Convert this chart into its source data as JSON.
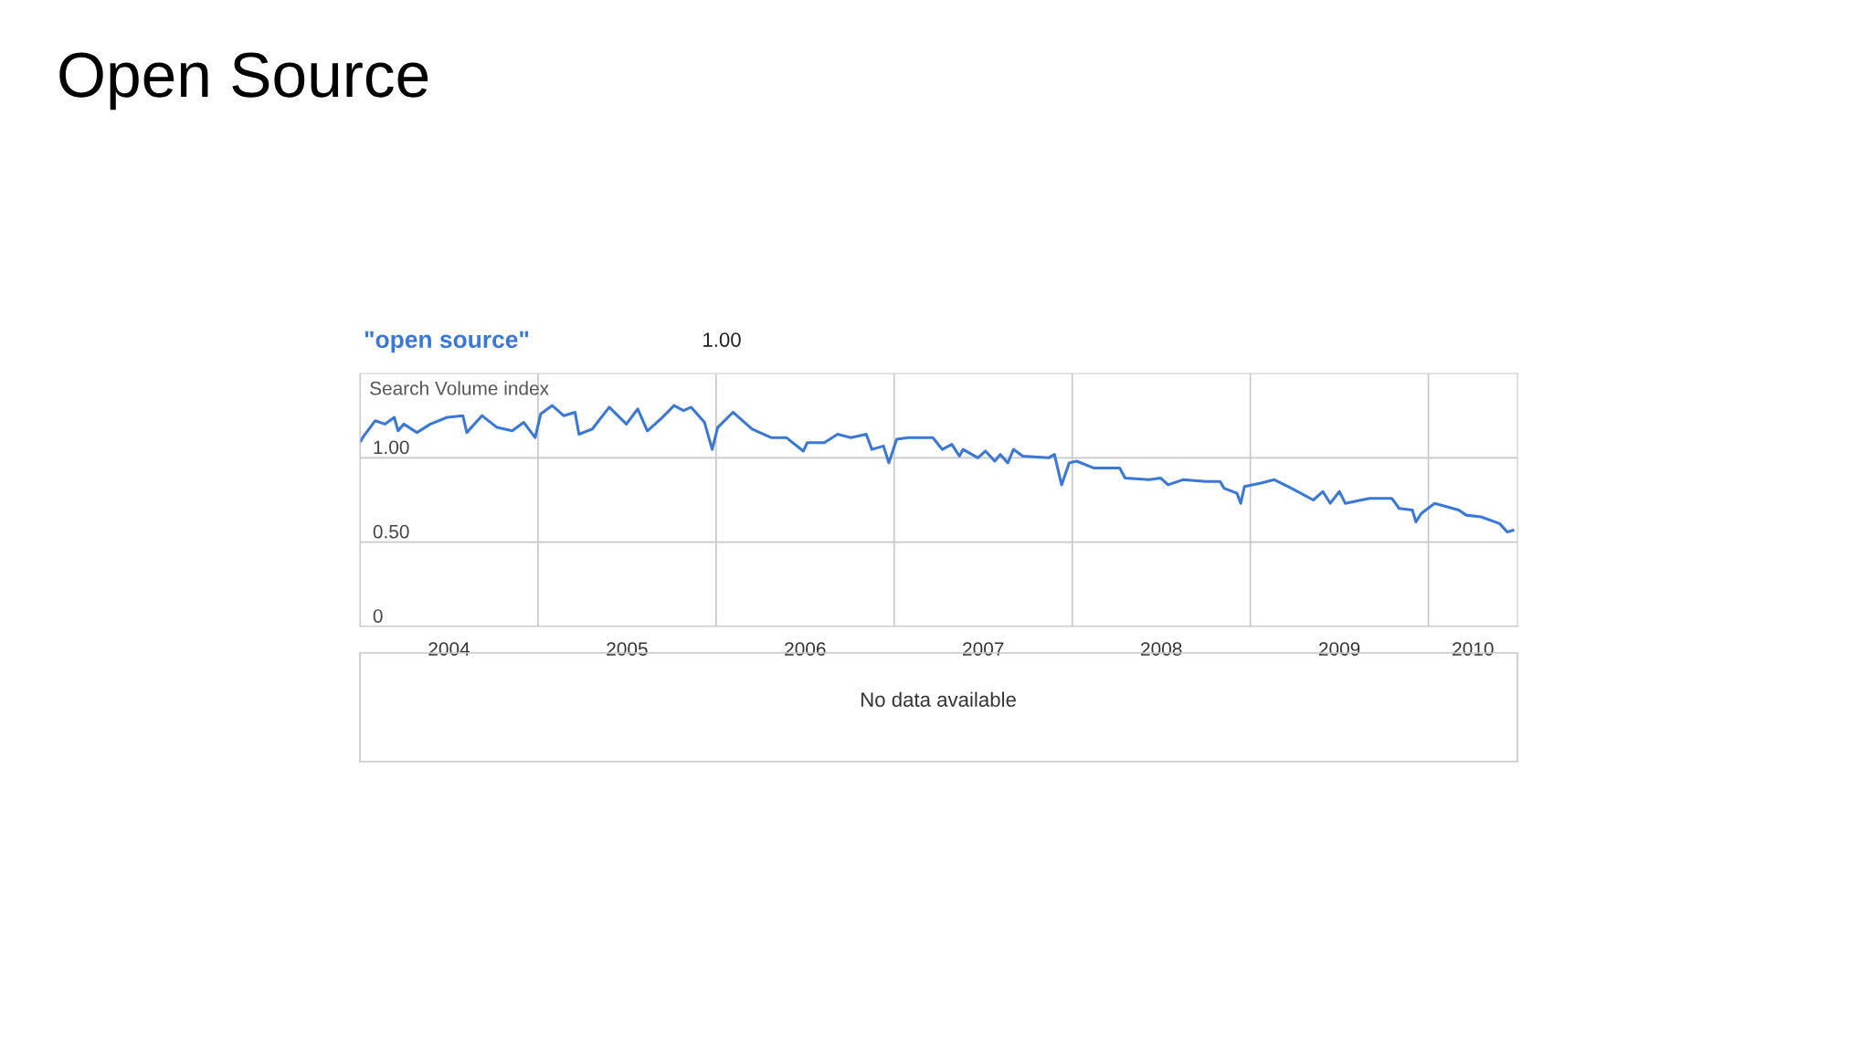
{
  "chart_data": {
    "type": "line",
    "title": "Open Source",
    "ylabel": "Search Volume index",
    "annotations": [
      "1.00",
      "No data available"
    ],
    "xlim": [
      2004,
      2010.5
    ],
    "ylim": [
      0,
      1.5
    ],
    "xticks": [
      {
        "value": 2004,
        "label": null
      },
      {
        "value": 2004.5,
        "label": "2004"
      },
      {
        "value": 2005,
        "label": null
      },
      {
        "value": 2005.5,
        "label": "2005"
      },
      {
        "value": 2006,
        "label": null
      },
      {
        "value": 2006.5,
        "label": "2006"
      },
      {
        "value": 2007,
        "label": null
      },
      {
        "value": 2007.5,
        "label": "2007"
      },
      {
        "value": 2008,
        "label": null
      },
      {
        "value": 2008.5,
        "label": "2008"
      },
      {
        "value": 2009,
        "label": null
      },
      {
        "value": 2009.5,
        "label": "2009"
      },
      {
        "value": 2010,
        "label": null
      },
      {
        "value": 2010.25,
        "label": "2010"
      }
    ],
    "yticks": [
      0,
      {
        "value": 0.5,
        "label": "0.50"
      },
      {
        "value": 1.0,
        "label": "1.00"
      }
    ],
    "grid": true,
    "legend": "top left",
    "marker": "none",
    "line_style": "solid",
    "x": [
      2004.005,
      2004.022,
      2004.086,
      2004.14,
      2004.193,
      2004.214,
      2004.246,
      2004.32,
      2004.396,
      2004.49,
      2004.578,
      2004.6,
      2004.685,
      2004.77,
      2004.855,
      2004.92,
      2004.984,
      2005.015,
      2005.08,
      2005.144,
      2005.208,
      2005.23,
      2005.304,
      2005.4,
      2005.496,
      2005.56,
      2005.614,
      2005.689,
      2005.764,
      2005.817,
      2005.86,
      2005.935,
      2005.978,
      2006.009,
      2006.095,
      2006.202,
      2006.309,
      2006.394,
      2006.49,
      2006.512,
      2006.608,
      2006.682,
      2006.757,
      2006.843,
      2006.875,
      2006.94,
      2006.97,
      2007.014,
      2007.078,
      2007.217,
      2007.27,
      2007.324,
      2007.366,
      2007.387,
      2007.47,
      2007.513,
      2007.565,
      2007.596,
      2007.638,
      2007.67,
      2007.722,
      2007.868,
      2007.9,
      2007.94,
      2007.983,
      2008.025,
      2008.119,
      2008.266,
      2008.297,
      2008.433,
      2008.496,
      2008.538,
      2008.622,
      2008.748,
      2008.83,
      2008.852,
      2008.925,
      2008.946,
      2008.967,
      2009.06,
      2009.135,
      2009.23,
      2009.354,
      2009.407,
      2009.449,
      2009.5,
      2009.533,
      2009.669,
      2009.794,
      2009.836,
      2009.91,
      2009.93,
      2009.96,
      2010.035,
      2010.17,
      2010.213,
      2010.296,
      2010.4,
      2010.443,
      2010.474
    ],
    "series": [
      {
        "name": "\"open source\"",
        "color": "#3a78d8",
        "values": [
          1.1,
          1.13,
          1.22,
          1.2,
          1.24,
          1.16,
          1.2,
          1.15,
          1.2,
          1.24,
          1.25,
          1.15,
          1.25,
          1.18,
          1.16,
          1.21,
          1.12,
          1.26,
          1.31,
          1.25,
          1.27,
          1.14,
          1.17,
          1.3,
          1.2,
          1.29,
          1.16,
          1.23,
          1.31,
          1.28,
          1.3,
          1.21,
          1.05,
          1.18,
          1.27,
          1.17,
          1.12,
          1.12,
          1.04,
          1.09,
          1.09,
          1.14,
          1.12,
          1.14,
          1.05,
          1.07,
          0.97,
          1.11,
          1.12,
          1.12,
          1.05,
          1.08,
          1.01,
          1.05,
          1.0,
          1.04,
          0.98,
          1.02,
          0.97,
          1.05,
          1.01,
          1.0,
          1.02,
          0.84,
          0.97,
          0.98,
          0.94,
          0.94,
          0.88,
          0.87,
          0.88,
          0.84,
          0.87,
          0.86,
          0.86,
          0.82,
          0.79,
          0.73,
          0.83,
          0.85,
          0.87,
          0.82,
          0.75,
          0.8,
          0.73,
          0.8,
          0.73,
          0.76,
          0.76,
          0.7,
          0.69,
          0.62,
          0.67,
          0.73,
          0.69,
          0.66,
          0.65,
          0.61,
          0.56,
          0.57
        ]
      }
    ]
  }
}
